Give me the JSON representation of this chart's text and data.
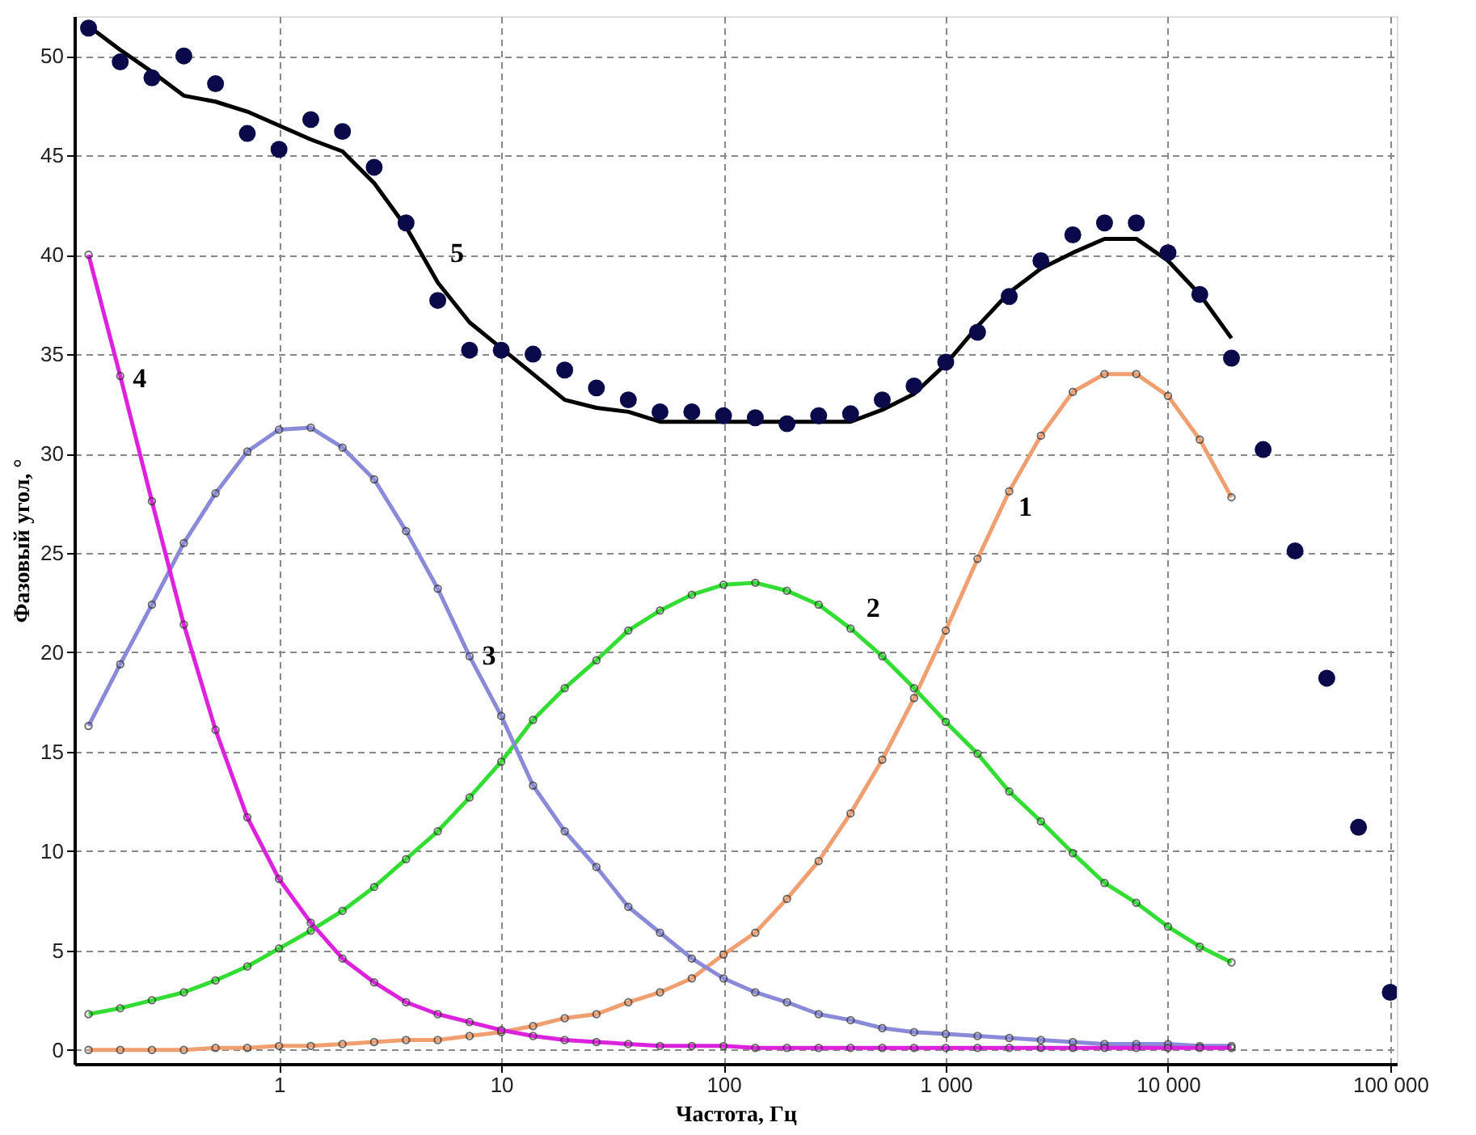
{
  "chart_data": {
    "type": "line",
    "xlabel": "Частота, Гц",
    "ylabel": "Фазовый угол, °",
    "log": "x",
    "xlim": [
      0.12,
      107000
    ],
    "ylim": [
      -0.7,
      52
    ],
    "xticks": [
      1,
      10,
      100,
      {
        "value": 1000,
        "label": "1 000"
      },
      {
        "value": 10000,
        "label": "10 000"
      },
      {
        "value": 100000,
        "label": "100 000"
      }
    ],
    "yticks": [
      0,
      5,
      10,
      15,
      20,
      25,
      30,
      35,
      40,
      45,
      50
    ],
    "grid": true,
    "x": [
      0.139,
      0.193,
      0.268,
      0.373,
      0.518,
      0.72,
      1,
      1.39,
      1.93,
      2.68,
      3.73,
      5.18,
      7.2,
      10,
      13.9,
      19.3,
      26.8,
      37.3,
      51.8,
      72,
      100,
      139,
      193,
      268,
      373,
      518,
      720,
      1000,
      1390,
      1930,
      2680,
      3730,
      5180,
      7200,
      10000,
      13900,
      19300
    ],
    "series": [
      {
        "marker": "circle",
        "color": "#f0a070",
        "values": [
          0.0,
          0.0,
          0.0,
          0.0,
          0.1,
          0.1,
          0.2,
          0.2,
          0.3,
          0.4,
          0.5,
          0.5,
          0.7,
          0.9,
          1.2,
          1.6,
          1.8,
          2.4,
          2.9,
          3.6,
          4.8,
          5.9,
          7.6,
          9.5,
          11.9,
          14.6,
          17.7,
          21.1,
          24.7,
          28.1,
          30.9,
          33.1,
          34.0,
          34.0,
          32.9,
          30.7,
          27.8
        ]
      },
      {
        "marker": "circle",
        "color": "#33dd33",
        "values": [
          1.8,
          2.1,
          2.5,
          2.9,
          3.5,
          4.2,
          5.1,
          6.0,
          7.0,
          8.2,
          9.6,
          11.0,
          12.7,
          14.5,
          16.6,
          18.2,
          19.6,
          21.1,
          22.1,
          22.9,
          23.4,
          23.5,
          23.1,
          22.4,
          21.2,
          19.8,
          18.2,
          16.5,
          14.9,
          13.0,
          11.5,
          9.9,
          8.4,
          7.4,
          6.2,
          5.2,
          4.4
        ]
      },
      {
        "marker": "circle",
        "color": "#8a8ad8",
        "values": [
          16.3,
          19.4,
          22.4,
          25.5,
          28.0,
          30.1,
          31.2,
          31.3,
          30.3,
          28.7,
          26.1,
          23.2,
          19.8,
          16.8,
          13.3,
          11.0,
          9.2,
          7.2,
          5.9,
          4.6,
          3.6,
          2.9,
          2.4,
          1.8,
          1.5,
          1.1,
          0.9,
          0.8,
          0.7,
          0.6,
          0.5,
          0.4,
          0.3,
          0.3,
          0.3,
          0.2,
          0.2
        ]
      },
      {
        "marker": "circle",
        "color": "#dd22dd",
        "values": [
          40.0,
          33.9,
          27.6,
          21.4,
          16.1,
          11.7,
          8.6,
          6.4,
          4.6,
          3.4,
          2.4,
          1.8,
          1.4,
          1.0,
          0.7,
          0.5,
          0.4,
          0.3,
          0.2,
          0.2,
          0.2,
          0.1,
          0.1,
          0.1,
          0.1,
          0.1,
          0.1,
          0.1,
          0.1,
          0.1,
          0.1,
          0.1,
          0.1,
          0.1,
          0.1,
          0.1,
          0.1
        ]
      },
      {
        "marker": "none",
        "color": "#000000",
        "values": [
          51.5,
          50.3,
          49.2,
          48.0,
          47.7,
          47.2,
          46.5,
          45.8,
          45.2,
          43.6,
          41.4,
          38.6,
          36.6,
          35.3,
          34.0,
          32.7,
          32.3,
          32.1,
          31.6,
          31.6,
          31.6,
          31.6,
          31.6,
          31.6,
          31.6,
          32.2,
          33.0,
          34.5,
          36.4,
          38.1,
          39.3,
          40.1,
          40.8,
          40.8,
          39.7,
          38.0,
          35.8
        ]
      },
      {
        "type": "scatter",
        "marker": "circle",
        "color": "#0a0a4a",
        "x": [
          0.139,
          0.193,
          0.268,
          0.373,
          0.518,
          0.72,
          1,
          1.39,
          1.93,
          2.68,
          3.73,
          5.18,
          7.2,
          10,
          13.9,
          19.3,
          26.8,
          37.3,
          51.8,
          72,
          100,
          139,
          193,
          268,
          373,
          518,
          720,
          1000,
          1390,
          1930,
          2680,
          3730,
          5180,
          7200,
          10000,
          13900,
          19300,
          26800,
          37300,
          51800,
          72000,
          100000
        ],
        "values": [
          51.4,
          49.7,
          48.9,
          50.0,
          48.6,
          46.1,
          45.3,
          46.8,
          46.2,
          44.4,
          41.6,
          37.7,
          35.2,
          35.2,
          35.0,
          34.2,
          33.3,
          32.7,
          32.1,
          32.1,
          31.9,
          31.8,
          31.5,
          31.9,
          32.0,
          32.7,
          33.4,
          34.6,
          36.1,
          37.9,
          39.7,
          41.0,
          41.6,
          41.6,
          40.1,
          38.0,
          34.8,
          30.2,
          25.1,
          18.7,
          11.2,
          2.9
        ]
      }
    ],
    "annotations": [
      "1",
      "2",
      "3",
      "4",
      "5"
    ]
  }
}
